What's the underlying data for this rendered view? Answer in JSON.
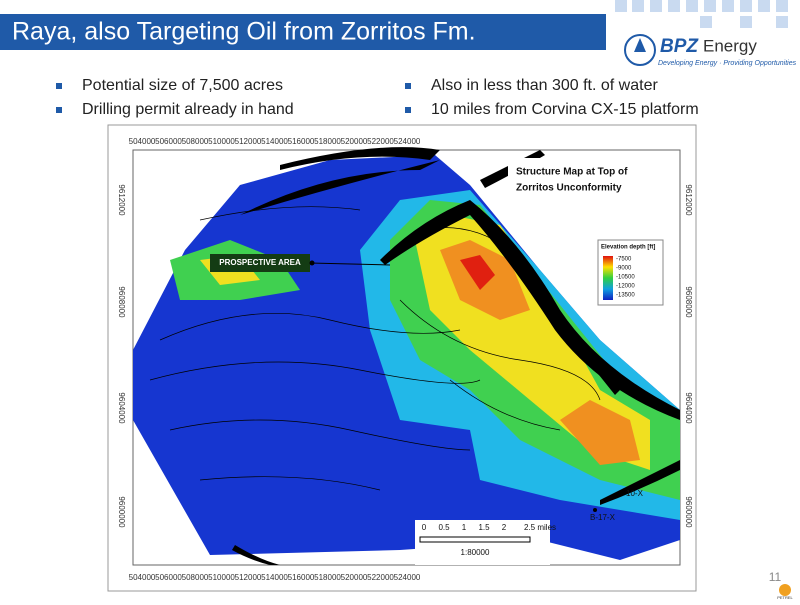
{
  "header": {
    "title": "Raya, also Targeting Oil from Zorritos Fm.",
    "logo_brand": "BPZ",
    "logo_word": "Energy",
    "logo_tagline": "Developing Energy · Providing Opportunities"
  },
  "bullets": {
    "left": [
      "Potential size of 7,500 acres",
      "Drilling permit already in hand"
    ],
    "right": [
      "Also in less than 300 ft. of water",
      "10 miles from Corvina CX-15 platform"
    ]
  },
  "map": {
    "title": [
      "Structure Map at Top of",
      "Zorritos Unconformity"
    ],
    "x_labels": [
      504000,
      506000,
      508000,
      510000,
      512000,
      514000,
      516000,
      518000,
      520000,
      522000,
      524000
    ],
    "y_labels": [
      9612000,
      9608000,
      9604000,
      9600000
    ],
    "annotation": "PROSPECTIVE AREA",
    "wells": [
      "B-17-X",
      "10-X"
    ],
    "legend": {
      "title": "Elevation depth [ft]",
      "entries": [
        "-7500",
        "-9000",
        "-10500",
        "-12000",
        "-13500"
      ]
    },
    "scale": {
      "labels": [
        "0",
        "0.5",
        "1",
        "1.5",
        "2",
        "2.5 miles"
      ],
      "ratio": "1:80000"
    },
    "software": "PETREL"
  },
  "page_number": "11"
}
